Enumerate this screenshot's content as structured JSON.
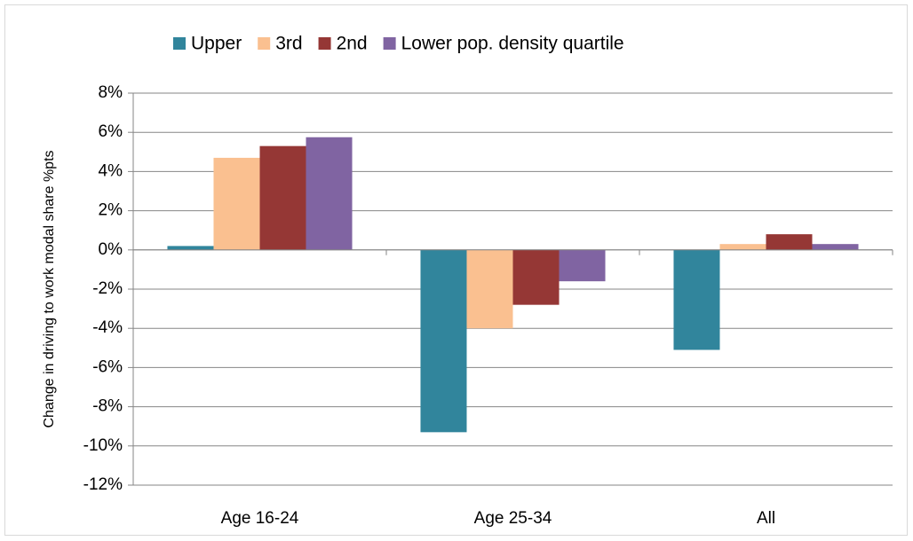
{
  "chart_data": {
    "type": "bar",
    "y_label": "Change in driving to work modal share %pts",
    "categories": [
      "Age 16-24",
      "Age 25-34",
      "All"
    ],
    "series": [
      {
        "name": "Upper",
        "color": "#31859c",
        "values": [
          0.2,
          -9.3,
          -5.1
        ]
      },
      {
        "name": "3rd",
        "color": "#fac090",
        "values": [
          4.7,
          -4.0,
          0.3
        ]
      },
      {
        "name": "2nd",
        "color": "#953735",
        "values": [
          5.3,
          -2.8,
          0.8
        ]
      },
      {
        "name": "Lower pop. density quartile",
        "color": "#8064a2",
        "values": [
          5.75,
          -1.6,
          0.3
        ]
      }
    ],
    "ylim": [
      -12,
      8
    ],
    "yticks": [
      {
        "value": -12,
        "label": "-12%"
      },
      {
        "value": -10,
        "label": "-10%"
      },
      {
        "value": -8,
        "label": "-8%"
      },
      {
        "value": -6,
        "label": "-6%"
      },
      {
        "value": -4,
        "label": "-4%"
      },
      {
        "value": -2,
        "label": "-2%"
      },
      {
        "value": 0,
        "label": "0%"
      },
      {
        "value": 2,
        "label": "2%"
      },
      {
        "value": 4,
        "label": "4%"
      },
      {
        "value": 6,
        "label": "6%"
      },
      {
        "value": 8,
        "label": "8%"
      }
    ],
    "grid": true,
    "legend": "top"
  }
}
